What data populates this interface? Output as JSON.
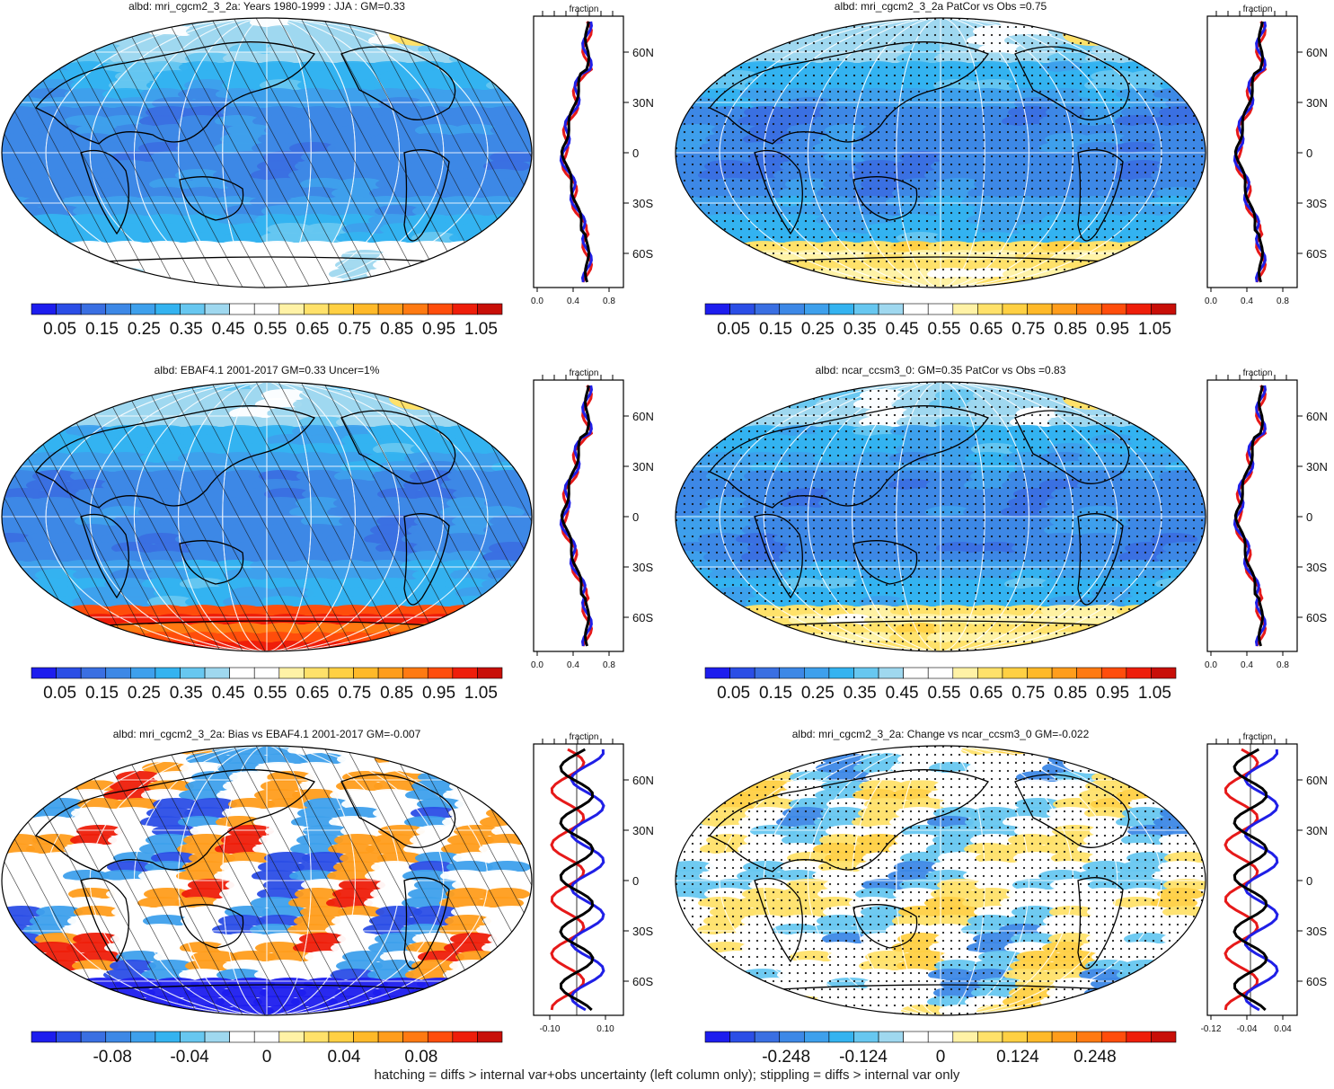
{
  "footer": "hatching = diffs > internal var+obs uncertainty (left column only); stippling = diffs > internal var only",
  "colors": {
    "abs": [
      "#1d1dee",
      "#2b4ee6",
      "#3a6fe2",
      "#3d88e6",
      "#3ea0ec",
      "#34b3f0",
      "#67c7f0",
      "#9fd8ef",
      "#ffffff",
      "#ffffff",
      "#fff2a6",
      "#ffe16a",
      "#ffd043",
      "#ffb929",
      "#ff9d1c",
      "#ff7a12",
      "#ff4d0c",
      "#ee1e0a",
      "#c80f08"
    ],
    "diff": [
      "#1d1dee",
      "#2b4ee6",
      "#3a6fe2",
      "#3d88e6",
      "#3ea0ec",
      "#34b3f0",
      "#67c7f0",
      "#9fd8ef",
      "#ffffff",
      "#ffffff",
      "#fff2a6",
      "#ffe16a",
      "#ffd043",
      "#ffb929",
      "#ff9d1c",
      "#ff7a12",
      "#ff4d0c",
      "#ee1e0a",
      "#c80f08"
    ],
    "zonal_lines": [
      "#e61919",
      "#1f1fe6",
      "#000000"
    ]
  },
  "chart_data": [
    {
      "type": "heatmap",
      "title": "albd: mri_cgcm2_3_2a: Years 1980-1999 : JJA : GM=0.33",
      "overlay": "hatching",
      "colorbar_labels": [
        "0.05",
        "0.15",
        "0.25",
        "0.35",
        "0.45",
        "0.55",
        "0.65",
        "0.75",
        "0.85",
        "0.95",
        "1.05"
      ],
      "zonal": {
        "title": "fraction",
        "xlim": [
          0,
          1
        ],
        "xticks": [
          "0.0",
          "0.4",
          "0.8"
        ],
        "yticks": [
          "60N",
          "30N",
          "0",
          "30S",
          "60S"
        ]
      }
    },
    {
      "type": "heatmap",
      "title": "albd: mri_cgcm2_3_2a PatCor vs Obs =0.75",
      "overlay": "stippling",
      "colorbar_labels": [
        "0.05",
        "0.15",
        "0.25",
        "0.35",
        "0.45",
        "0.55",
        "0.65",
        "0.75",
        "0.85",
        "0.95",
        "1.05"
      ],
      "zonal": {
        "title": "fraction",
        "xlim": [
          0,
          1
        ],
        "xticks": [
          "0.0",
          "0.4",
          "0.8"
        ],
        "yticks": [
          "60N",
          "30N",
          "0",
          "30S",
          "60S"
        ]
      }
    },
    {
      "type": "heatmap",
      "title": "albd: EBAF4.1 2001-2017 GM=0.33 Uncer=1%",
      "overlay": "hatching",
      "colorbar_labels": [
        "0.05",
        "0.15",
        "0.25",
        "0.35",
        "0.45",
        "0.55",
        "0.65",
        "0.75",
        "0.85",
        "0.95",
        "1.05"
      ],
      "zonal": {
        "title": "fraction",
        "xlim": [
          0,
          1
        ],
        "xticks": [
          "0.0",
          "0.4",
          "0.8"
        ],
        "yticks": [
          "60N",
          "30N",
          "0",
          "30S",
          "60S"
        ]
      }
    },
    {
      "type": "heatmap",
      "title": "albd: ncar_ccsm3_0: GM=0.35 PatCor vs Obs =0.83",
      "overlay": "stippling",
      "colorbar_labels": [
        "0.05",
        "0.15",
        "0.25",
        "0.35",
        "0.45",
        "0.55",
        "0.65",
        "0.75",
        "0.85",
        "0.95",
        "1.05"
      ],
      "zonal": {
        "title": "fraction",
        "xlim": [
          0,
          1
        ],
        "xticks": [
          "0.0",
          "0.4",
          "0.8"
        ],
        "yticks": [
          "60N",
          "30N",
          "0",
          "30S",
          "60S"
        ]
      }
    },
    {
      "type": "heatmap",
      "title": "albd: mri_cgcm2_3_2a: Bias vs EBAF4.1 2001-2017 GM=-0.007",
      "overlay": "hatching",
      "colorbar_labels": [
        "-0.08",
        "-0.04",
        "0",
        "0.04",
        "0.08"
      ],
      "zonal": {
        "title": "fraction",
        "xlim": [
          -0.18,
          0.18
        ],
        "xticks": [
          "-0.10",
          "0.10"
        ],
        "yticks": [
          "60N",
          "30N",
          "0",
          "30S",
          "60S"
        ]
      }
    },
    {
      "type": "heatmap",
      "title": "albd: mri_cgcm2_3_2a: Change vs ncar_ccsm3_0 GM=-0.022",
      "overlay": "stippling",
      "colorbar_labels": [
        "-0.248",
        "-0.124",
        "0",
        "0.124",
        "0.248"
      ],
      "zonal": {
        "title": "fraction",
        "xlim": [
          -0.16,
          0.06
        ],
        "xticks": [
          "-0.12",
          "-0.04",
          "0.04"
        ],
        "yticks": [
          "60N",
          "30N",
          "0",
          "30S",
          "60S"
        ]
      }
    }
  ]
}
